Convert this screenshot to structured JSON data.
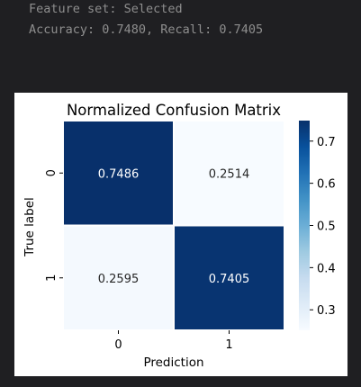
{
  "console": {
    "feature_set": "Feature set: Selected",
    "metrics": "Accuracy: 0.7480, Recall: 0.7405"
  },
  "chart_data": {
    "type": "heatmap",
    "title": "Normalized Confusion Matrix",
    "xlabel": "Prediction",
    "ylabel": "True label",
    "x_tick_labels": [
      "0",
      "1"
    ],
    "y_tick_labels": [
      "0",
      "1"
    ],
    "matrix": [
      [
        0.7486,
        0.2514
      ],
      [
        0.2595,
        0.7405
      ]
    ],
    "annotations": [
      [
        "0.7486",
        "0.2514"
      ],
      [
        "0.2595",
        "0.7405"
      ]
    ],
    "colormap": "Blues",
    "vmin": 0.2514,
    "vmax": 0.7486,
    "colorbar_ticks": [
      0.3,
      0.4,
      0.5,
      0.6,
      0.7
    ],
    "colorbar_tick_labels": [
      "0.3",
      "0.4",
      "0.5",
      "0.6",
      "0.7"
    ],
    "colors": {
      "high": "#08306b",
      "low": "#f7fbff",
      "text_on_dark": "#ffffff",
      "text_on_light": "#262626"
    }
  }
}
